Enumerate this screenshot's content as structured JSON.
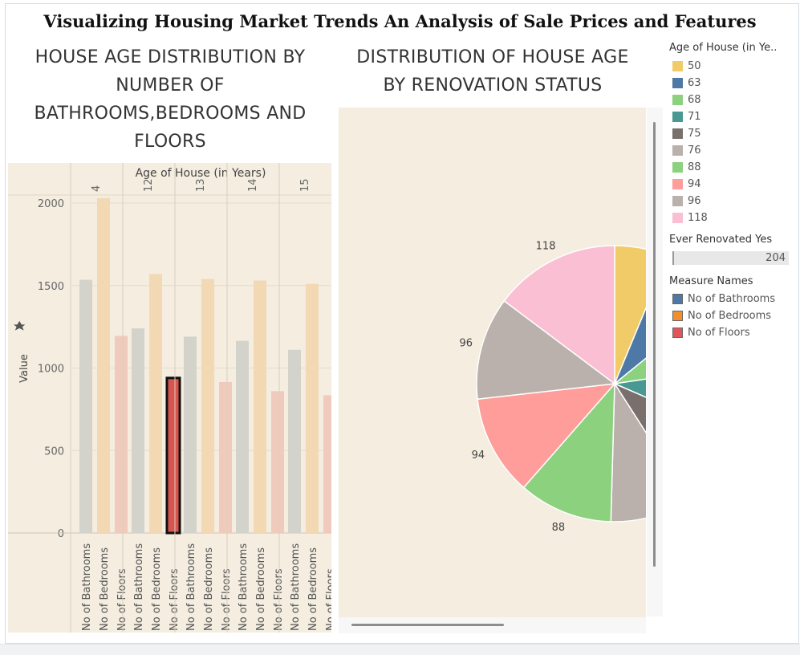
{
  "main_title": "Visualizing Housing Market Trends An Analysis of Sale Prices and Features",
  "bar_sheet": {
    "title_lines": [
      "HOUSE AGE DISTRIBUTION BY",
      "NUMBER OF",
      "BATHROOMS,BEDROOMS AND",
      "FLOORS"
    ]
  },
  "pie_sheet": {
    "title_lines": [
      "DISTRIBUTION OF HOUSE AGE",
      "BY RENOVATION STATUS"
    ]
  },
  "legend": {
    "age_title": "Age of House (in Ye..",
    "age_items": [
      {
        "label": "50",
        "color": "#f0cb67"
      },
      {
        "label": "63",
        "color": "#4e79a7"
      },
      {
        "label": "68",
        "color": "#8cd17d"
      },
      {
        "label": "71",
        "color": "#499894"
      },
      {
        "label": "75",
        "color": "#79706e"
      },
      {
        "label": "76",
        "color": "#bab0ac"
      },
      {
        "label": "88",
        "color": "#8cd17d"
      },
      {
        "label": "94",
        "color": "#ff9d9a"
      },
      {
        "label": "96",
        "color": "#bab0ac"
      },
      {
        "label": "118",
        "color": "#fabfd2"
      }
    ],
    "renovated_title": "Ever Renovated Yes",
    "renovated_value": "204",
    "measure_title": "Measure Names",
    "measure_items": [
      {
        "label": "No of Bathrooms",
        "color": "#4e79a7"
      },
      {
        "label": "No of Bedrooms",
        "color": "#f28e2b"
      },
      {
        "label": "No of Floors",
        "color": "#e15759"
      }
    ]
  },
  "chart_data": [
    {
      "type": "bar",
      "title": "HOUSE AGE DISTRIBUTION BY NUMBER OF BATHROOMS,BEDROOMS AND FLOORS",
      "top_axis_label": "Age of House (in Years)",
      "ylabel": "Value",
      "ylim": [
        0,
        2000
      ],
      "yticks": [
        0,
        500,
        1000,
        1500,
        2000
      ],
      "groups": [
        "4",
        "12",
        "13",
        "14",
        "15"
      ],
      "measures": [
        "No of Bathrooms",
        "No of Bedrooms",
        "No of Floors"
      ],
      "measure_colors": {
        "No of Bathrooms": "#d3d3cb",
        "No of Bedrooms": "#f2d9b4",
        "No of Floors": "#f0cbbd"
      },
      "highlight_color": "#d9534f",
      "highlight": {
        "group": "12",
        "measure": "No of Floors"
      },
      "values": [
        {
          "group": "4",
          "No of Bathrooms": 1535,
          "No of Bedrooms": 2030,
          "No of Floors": 1195
        },
        {
          "group": "12",
          "No of Bathrooms": 1240,
          "No of Bedrooms": 1570,
          "No of Floors": 940
        },
        {
          "group": "13",
          "No of Bathrooms": 1190,
          "No of Bedrooms": 1540,
          "No of Floors": 915
        },
        {
          "group": "14",
          "No of Bathrooms": 1165,
          "No of Bedrooms": 1530,
          "No of Floors": 860
        },
        {
          "group": "15",
          "No of Bathrooms": 1110,
          "No of Bedrooms": 1510,
          "No of Floors": 835
        }
      ]
    },
    {
      "type": "pie",
      "title": "DISTRIBUTION OF HOUSE AGE BY RENOVATION STATUS",
      "slices": [
        {
          "label": "50",
          "value": 50,
          "color": "#f0cb67",
          "show_label": false
        },
        {
          "label": "63",
          "value": 63,
          "color": "#4e79a7",
          "show_label": false
        },
        {
          "label": "68",
          "value": 68,
          "color": "#8cd17d",
          "show_label": false
        },
        {
          "label": "71",
          "value": 71,
          "color": "#499894",
          "show_label": false
        },
        {
          "label": "75",
          "value": 75,
          "color": "#79706e",
          "show_label": false
        },
        {
          "label": "76",
          "value": 76,
          "color": "#bab0ac",
          "show_label": true
        },
        {
          "label": "88",
          "value": 88,
          "color": "#8cd17d",
          "show_label": true
        },
        {
          "label": "94",
          "value": 94,
          "color": "#ff9d9a",
          "show_label": true
        },
        {
          "label": "96",
          "value": 96,
          "color": "#bab0ac",
          "show_label": true
        },
        {
          "label": "118",
          "value": 118,
          "color": "#fabfd2",
          "show_label": true
        }
      ]
    }
  ]
}
